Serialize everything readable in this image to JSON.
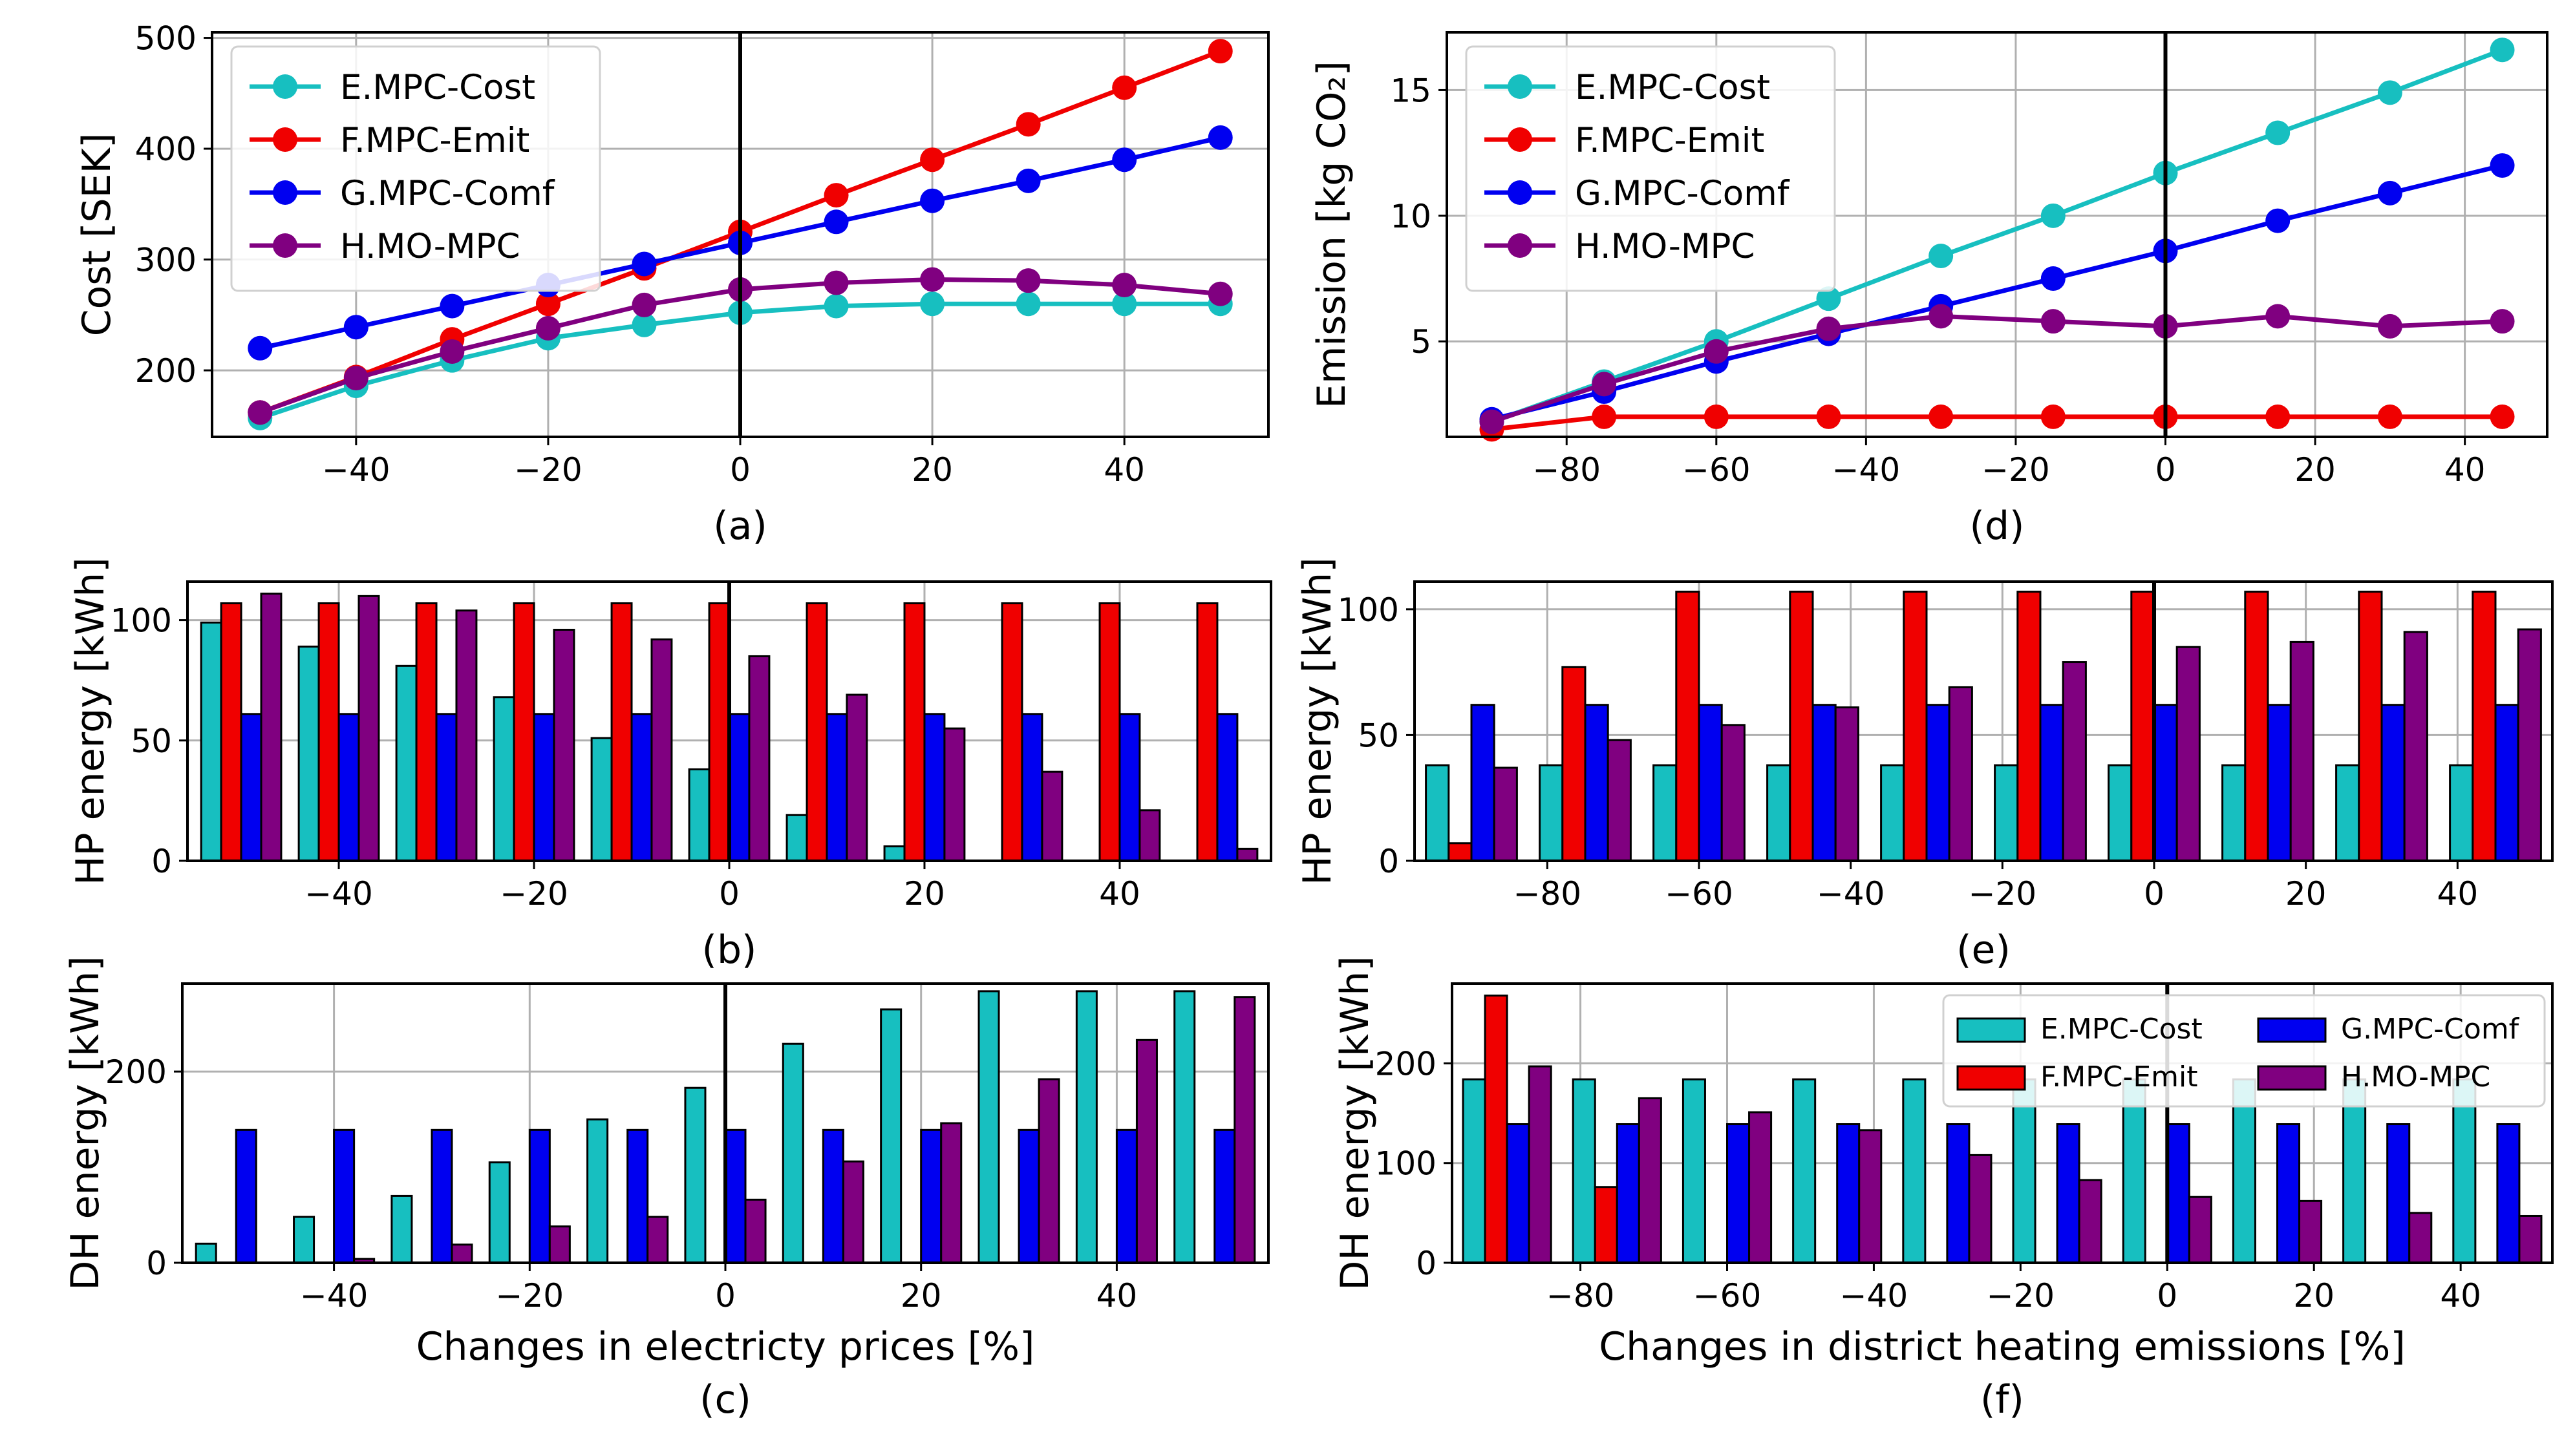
{
  "colors": {
    "E": "#17BFC0",
    "F": "#F00000",
    "G": "#0000F0",
    "H": "#800080",
    "grid": "#b0b0b0",
    "zero_line": "#000000"
  },
  "chart_data": [
    {
      "id": "a",
      "panel_label": "(a)",
      "type": "line",
      "ylabel": "Cost [SEK]",
      "xlabel": "",
      "xlim": [
        -55,
        55
      ],
      "ylim": [
        140,
        505
      ],
      "xticks": [
        -40,
        -20,
        0,
        20,
        40
      ],
      "yticks": [
        200,
        300,
        400,
        500
      ],
      "legend": "top-left",
      "x": [
        -50,
        -40,
        -30,
        -20,
        -10,
        0,
        10,
        20,
        30,
        40,
        50
      ],
      "series": [
        {
          "key": "E",
          "name": "E.MPC-Cost",
          "values": [
            157,
            186,
            209,
            229,
            241,
            252,
            258,
            260,
            260,
            260,
            260
          ]
        },
        {
          "key": "F",
          "name": "F.MPC-Emit",
          "values": [
            162,
            194,
            228,
            260,
            292,
            325,
            358,
            390,
            422,
            455,
            488
          ]
        },
        {
          "key": "G",
          "name": "G.MPC-Comf",
          "values": [
            220,
            239,
            258,
            277,
            296,
            315,
            334,
            353,
            371,
            390,
            410
          ]
        },
        {
          "key": "H",
          "name": "H.MO-MPC",
          "values": [
            162,
            193,
            217,
            238,
            259,
            273,
            279,
            282,
            281,
            277,
            269
          ]
        }
      ]
    },
    {
      "id": "d",
      "panel_label": "(d)",
      "type": "line",
      "ylabel": "Emission [kg CO₂]",
      "xlabel": "",
      "xlim": [
        -96,
        51
      ],
      "ylim": [
        1.2,
        17.3
      ],
      "xticks": [
        -80,
        -60,
        -40,
        -20,
        0,
        20,
        40
      ],
      "yticks": [
        5,
        10,
        15
      ],
      "legend": "top-left",
      "x": [
        -90,
        -75,
        -60,
        -45,
        -30,
        -15,
        0,
        15,
        30,
        45
      ],
      "series": [
        {
          "key": "E",
          "name": "E.MPC-Cost",
          "values": [
            1.8,
            3.4,
            5.0,
            6.7,
            8.4,
            10.0,
            11.7,
            13.3,
            14.9,
            16.6
          ]
        },
        {
          "key": "F",
          "name": "F.MPC-Emit",
          "values": [
            1.5,
            2.0,
            2.0,
            2.0,
            2.0,
            2.0,
            2.0,
            2.0,
            2.0,
            2.0
          ]
        },
        {
          "key": "G",
          "name": "G.MPC-Comf",
          "values": [
            1.9,
            3.0,
            4.2,
            5.3,
            6.4,
            7.5,
            8.6,
            9.8,
            10.9,
            12.0
          ]
        },
        {
          "key": "H",
          "name": "H.MO-MPC",
          "values": [
            1.8,
            3.3,
            4.6,
            5.5,
            6.0,
            5.8,
            5.6,
            6.0,
            5.6,
            5.8
          ]
        }
      ]
    },
    {
      "id": "b",
      "panel_label": "(b)",
      "type": "bar",
      "ylabel": "HP energy [kWh]",
      "xlabel": "",
      "xlim": [
        -55.5,
        55.5
      ],
      "ylim": [
        0,
        116
      ],
      "xticks": [
        -40,
        -20,
        0,
        20,
        40
      ],
      "yticks": [
        0,
        50,
        100
      ],
      "categories": [
        -50,
        -40,
        -30,
        -20,
        -10,
        0,
        10,
        20,
        30,
        40,
        50
      ],
      "bar_width": 2.05,
      "series": [
        {
          "key": "E",
          "name": "E.MPC-Cost",
          "values": [
            99,
            89,
            81,
            68,
            51,
            38,
            19,
            6,
            0,
            0,
            0
          ]
        },
        {
          "key": "F",
          "name": "F.MPC-Emit",
          "values": [
            107,
            107,
            107,
            107,
            107,
            107,
            107,
            107,
            107,
            107,
            107
          ]
        },
        {
          "key": "G",
          "name": "G.MPC-Comf",
          "values": [
            61,
            61,
            61,
            61,
            61,
            61,
            61,
            61,
            61,
            61,
            61
          ]
        },
        {
          "key": "H",
          "name": "H.MO-MPC",
          "values": [
            111,
            110,
            104,
            96,
            92,
            85,
            69,
            55,
            37,
            21,
            5
          ]
        }
      ]
    },
    {
      "id": "e",
      "panel_label": "(e)",
      "type": "bar",
      "ylabel": "HP energy [kWh]",
      "xlabel": "",
      "xlim": [
        -97.5,
        52.5
      ],
      "ylim": [
        0,
        111
      ],
      "xticks": [
        -80,
        -60,
        -40,
        -20,
        0,
        20,
        40
      ],
      "yticks": [
        0,
        50,
        100
      ],
      "categories": [
        -90,
        -75,
        -60,
        -45,
        -30,
        -15,
        0,
        15,
        30,
        45
      ],
      "bar_width": 3.0,
      "series": [
        {
          "key": "E",
          "name": "E.MPC-Cost",
          "values": [
            38,
            38,
            38,
            38,
            38,
            38,
            38,
            38,
            38,
            38
          ]
        },
        {
          "key": "F",
          "name": "F.MPC-Emit",
          "values": [
            7,
            77,
            107,
            107,
            107,
            107,
            107,
            107,
            107,
            107
          ]
        },
        {
          "key": "G",
          "name": "G.MPC-Comf",
          "values": [
            62,
            62,
            62,
            62,
            62,
            62,
            62,
            62,
            62,
            62
          ]
        },
        {
          "key": "H",
          "name": "H.MO-MPC",
          "values": [
            37,
            48,
            54,
            61,
            69,
            79,
            85,
            87,
            91,
            92
          ]
        }
      ]
    },
    {
      "id": "c",
      "panel_label": "(c)",
      "type": "bar",
      "ylabel": "DH energy [kWh]",
      "xlabel": "Changes in electricty prices [%]",
      "xlim": [
        -55.5,
        55.5
      ],
      "ylim": [
        0,
        292
      ],
      "xticks": [
        -40,
        -20,
        0,
        20,
        40
      ],
      "yticks": [
        0,
        200
      ],
      "categories": [
        -50,
        -40,
        -30,
        -20,
        -10,
        0,
        10,
        20,
        30,
        40,
        50
      ],
      "bar_width": 2.05,
      "series": [
        {
          "key": "E",
          "name": "E.MPC-Cost",
          "values": [
            20,
            48,
            70,
            105,
            150,
            183,
            229,
            265,
            284,
            284,
            284
          ]
        },
        {
          "key": "F",
          "name": "F.MPC-Emit",
          "values": [
            0,
            0,
            0,
            0,
            0,
            0,
            0,
            0,
            0,
            0,
            0
          ]
        },
        {
          "key": "G",
          "name": "G.MPC-Comf",
          "values": [
            139,
            139,
            139,
            139,
            139,
            139,
            139,
            139,
            139,
            139,
            139
          ]
        },
        {
          "key": "H",
          "name": "H.MO-MPC",
          "values": [
            0,
            4,
            19,
            38,
            48,
            66,
            106,
            146,
            192,
            233,
            278
          ]
        }
      ]
    },
    {
      "id": "f",
      "panel_label": "(f)",
      "type": "bar",
      "ylabel": "DH energy [kWh]",
      "xlabel": "Changes in district heating emissions [%]",
      "xlim": [
        -97.5,
        52.5
      ],
      "ylim": [
        0,
        280
      ],
      "xticks": [
        -80,
        -60,
        -40,
        -20,
        0,
        20,
        40
      ],
      "yticks": [
        0,
        100,
        200
      ],
      "categories": [
        -90,
        -75,
        -60,
        -45,
        -30,
        -15,
        0,
        15,
        30,
        45
      ],
      "bar_width": 3.0,
      "legend": "top-right",
      "series": [
        {
          "key": "E",
          "name": "E.MPC-Cost",
          "values": [
            184,
            184,
            184,
            184,
            184,
            184,
            184,
            184,
            184,
            184
          ]
        },
        {
          "key": "F",
          "name": "F.MPC-Emit",
          "values": [
            268,
            76,
            0,
            0,
            0,
            0,
            0,
            0,
            0,
            0
          ]
        },
        {
          "key": "G",
          "name": "G.MPC-Comf",
          "values": [
            139,
            139,
            139,
            139,
            139,
            139,
            139,
            139,
            139,
            139
          ]
        },
        {
          "key": "H",
          "name": "H.MO-MPC",
          "values": [
            197,
            165,
            151,
            133,
            108,
            83,
            66,
            62,
            50,
            47
          ]
        }
      ]
    }
  ]
}
